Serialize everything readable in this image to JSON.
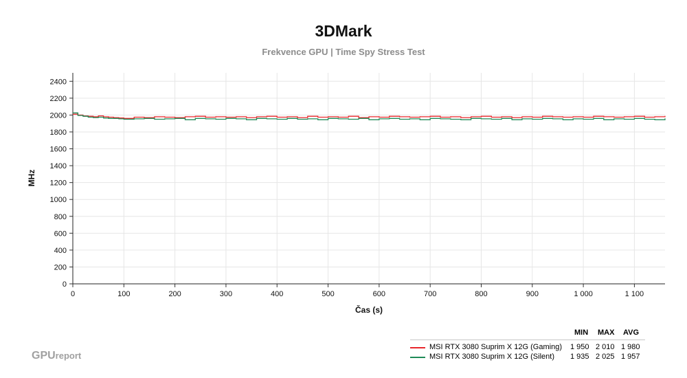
{
  "chart_data": {
    "type": "line",
    "title": "3DMark",
    "subtitle": "Frekvence GPU | Time Spy Stress Test",
    "xlabel": "Čas (s)",
    "ylabel": "MHz",
    "xlim": [
      0,
      1160
    ],
    "ylim": [
      0,
      2500
    ],
    "x_ticks": [
      0,
      100,
      200,
      300,
      400,
      500,
      600,
      700,
      800,
      900,
      1000,
      1100
    ],
    "x_tick_labels": [
      "0",
      "100",
      "200",
      "300",
      "400",
      "500",
      "600",
      "700",
      "800",
      "900",
      "1 000",
      "1 100"
    ],
    "y_ticks": [
      0,
      200,
      400,
      600,
      800,
      1000,
      1200,
      1400,
      1600,
      1800,
      2000,
      2200,
      2400
    ],
    "y_tick_labels": [
      "0",
      "200",
      "400",
      "600",
      "800",
      "1000",
      "1200",
      "1400",
      "1600",
      "1800",
      "2000",
      "2200",
      "2400"
    ],
    "grid": true,
    "legend_position": "bottom-right",
    "series": [
      {
        "name": "MSI RTX 3080 Suprim X 12G (Gaming)",
        "color": "#e8262a",
        "x": [
          0,
          10,
          20,
          30,
          40,
          50,
          60,
          70,
          80,
          90,
          100,
          120,
          140,
          160,
          180,
          200,
          220,
          240,
          260,
          280,
          300,
          320,
          340,
          360,
          380,
          400,
          420,
          440,
          460,
          480,
          500,
          520,
          540,
          560,
          580,
          600,
          620,
          640,
          660,
          680,
          700,
          720,
          740,
          760,
          780,
          800,
          820,
          840,
          860,
          880,
          900,
          920,
          940,
          960,
          980,
          1000,
          1020,
          1040,
          1060,
          1080,
          1100,
          1120,
          1140,
          1160
        ],
        "values": [
          2010,
          2000,
          1990,
          1985,
          1980,
          1990,
          1980,
          1975,
          1970,
          1965,
          1960,
          1975,
          1970,
          1980,
          1975,
          1970,
          1980,
          1985,
          1975,
          1980,
          1975,
          1980,
          1970,
          1980,
          1985,
          1975,
          1980,
          1970,
          1985,
          1975,
          1980,
          1975,
          1985,
          1970,
          1980,
          1975,
          1985,
          1980,
          1975,
          1980,
          1985,
          1975,
          1980,
          1970,
          1980,
          1985,
          1975,
          1980,
          1970,
          1980,
          1975,
          1985,
          1980,
          1975,
          1980,
          1975,
          1985,
          1980,
          1975,
          1980,
          1985,
          1975,
          1980,
          1990
        ]
      },
      {
        "name": "MSI RTX 3080 Suprim X 12G (Silent)",
        "color": "#1f8a57",
        "x": [
          0,
          10,
          20,
          30,
          40,
          50,
          60,
          70,
          80,
          90,
          100,
          120,
          140,
          160,
          180,
          200,
          220,
          240,
          260,
          280,
          300,
          320,
          340,
          360,
          380,
          400,
          420,
          440,
          460,
          480,
          500,
          520,
          540,
          560,
          580,
          600,
          620,
          640,
          660,
          680,
          700,
          720,
          740,
          760,
          780,
          800,
          820,
          840,
          860,
          880,
          900,
          920,
          940,
          960,
          980,
          1000,
          1020,
          1040,
          1060,
          1080,
          1100,
          1120,
          1140,
          1160
        ],
        "values": [
          2025,
          1995,
          1985,
          1975,
          1970,
          1975,
          1965,
          1960,
          1960,
          1955,
          1950,
          1955,
          1960,
          1950,
          1955,
          1960,
          1945,
          1960,
          1955,
          1950,
          1960,
          1955,
          1945,
          1960,
          1955,
          1950,
          1960,
          1950,
          1955,
          1945,
          1960,
          1955,
          1950,
          1960,
          1945,
          1955,
          1960,
          1950,
          1955,
          1945,
          1960,
          1955,
          1950,
          1945,
          1960,
          1955,
          1950,
          1960,
          1945,
          1955,
          1950,
          1960,
          1955,
          1945,
          1955,
          1950,
          1960,
          1945,
          1955,
          1950,
          1960,
          1950,
          1945,
          1960
        ]
      }
    ],
    "stats": {
      "headers": [
        "MIN",
        "MAX",
        "AVG"
      ],
      "rows": [
        {
          "min": "1 950",
          "max": "2 010",
          "avg": "1 980"
        },
        {
          "min": "1 935",
          "max": "2 025",
          "avg": "1 957"
        }
      ]
    }
  },
  "brand": {
    "part1": "GPU",
    "part2": "report"
  }
}
